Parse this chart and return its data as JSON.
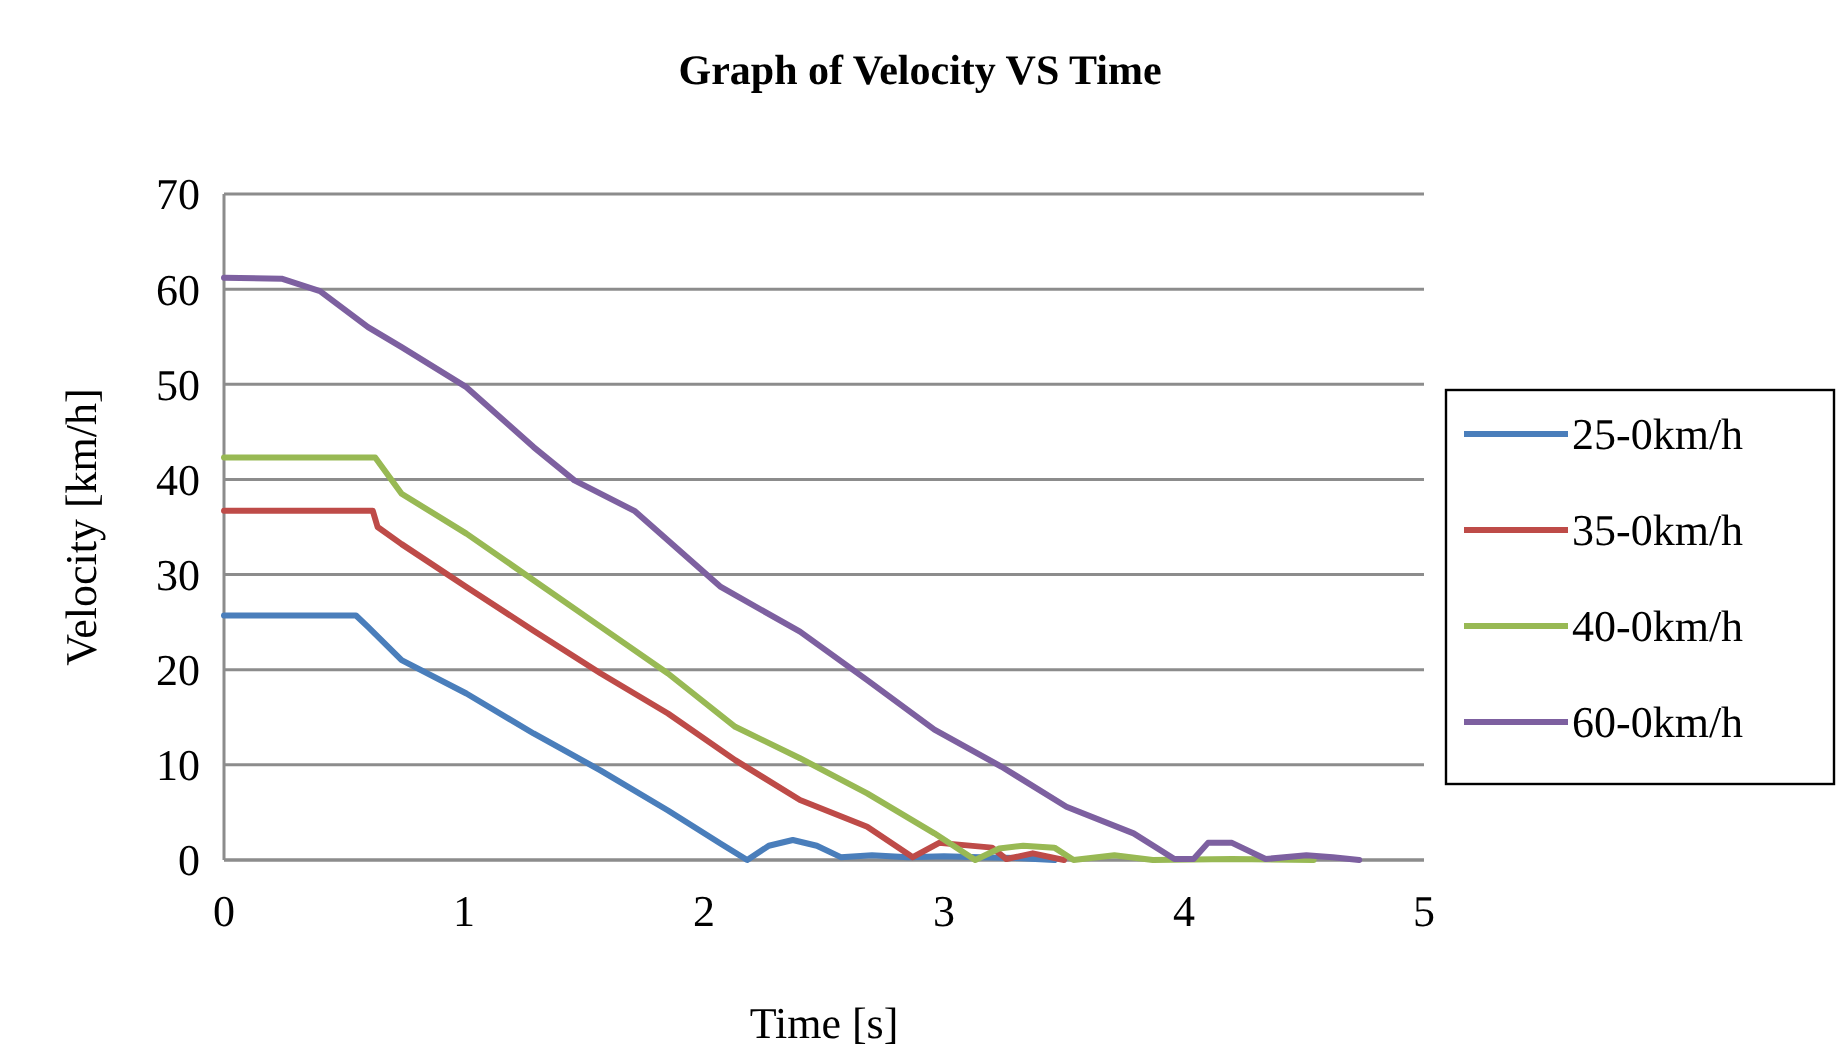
{
  "chart_data": {
    "type": "line",
    "title": "Graph of Velocity VS Time",
    "xlabel": "Time [s]",
    "ylabel": "Velocity [km/h]",
    "xlim": [
      0,
      5
    ],
    "xticks": [
      0,
      1,
      2,
      3,
      4,
      5
    ],
    "ylim": [
      0,
      70
    ],
    "yticks": [
      0,
      10,
      20,
      30,
      40,
      50,
      60,
      70
    ],
    "grid": "y",
    "legend": "right",
    "marker": "none",
    "line_style": "solid",
    "series": [
      {
        "name": "25-0km/h",
        "color": "#4a7ebb",
        "x": [
          0,
          0.55,
          0.6,
          0.74,
          1.01,
          1.29,
          1.57,
          1.85,
          2.07,
          2.18,
          2.27,
          2.37,
          2.47,
          2.57,
          2.7,
          2.85,
          3.0,
          3.15,
          3.3,
          3.46
        ],
        "values": [
          25.7,
          25.7,
          24.5,
          21,
          17.5,
          13.3,
          9.4,
          5.2,
          1.7,
          0,
          1.5,
          2.1,
          1.5,
          0.3,
          0.5,
          0.3,
          0.4,
          0.3,
          0.2,
          0
        ]
      },
      {
        "name": "35-0km/h",
        "color": "#be4b48",
        "x": [
          0,
          0.62,
          0.64,
          0.74,
          1.01,
          1.29,
          1.57,
          1.85,
          2.13,
          2.4,
          2.68,
          2.87,
          2.98,
          3.2,
          3.26,
          3.37,
          3.5
        ],
        "values": [
          36.7,
          36.7,
          35,
          33.2,
          28.7,
          24.1,
          19.6,
          15.4,
          10.5,
          6.3,
          3.5,
          0.3,
          1.8,
          1.3,
          0.1,
          0.7,
          0
        ]
      },
      {
        "name": "40-0km/h",
        "color": "#98b954",
        "x": [
          0,
          0.63,
          0.74,
          1.01,
          1.29,
          1.57,
          1.85,
          2.13,
          2.4,
          2.68,
          2.96,
          3.13,
          3.23,
          3.33,
          3.46,
          3.54,
          3.71,
          3.87,
          4.2,
          4.54
        ],
        "values": [
          42.3,
          42.3,
          38.5,
          34.3,
          29.4,
          24.5,
          19.6,
          14,
          10.7,
          7,
          2.8,
          0,
          1.2,
          1.5,
          1.3,
          0,
          0.5,
          0,
          0.1,
          0
        ]
      },
      {
        "name": "60-0km/h",
        "color": "#7d60a0",
        "x": [
          0,
          0.24,
          0.4,
          0.6,
          0.74,
          1.01,
          1.29,
          1.46,
          1.71,
          2.07,
          2.4,
          2.68,
          2.96,
          3.24,
          3.51,
          3.79,
          3.96,
          4.04,
          4.1,
          4.2,
          4.34,
          4.51,
          4.62,
          4.73
        ],
        "values": [
          61.2,
          61.1,
          59.8,
          56,
          53.9,
          49.7,
          43.4,
          39.9,
          36.7,
          28.7,
          24,
          18.9,
          13.7,
          9.8,
          5.6,
          2.8,
          0.1,
          0.1,
          1.8,
          1.8,
          0.1,
          0.5,
          0.3,
          0
        ]
      }
    ]
  }
}
